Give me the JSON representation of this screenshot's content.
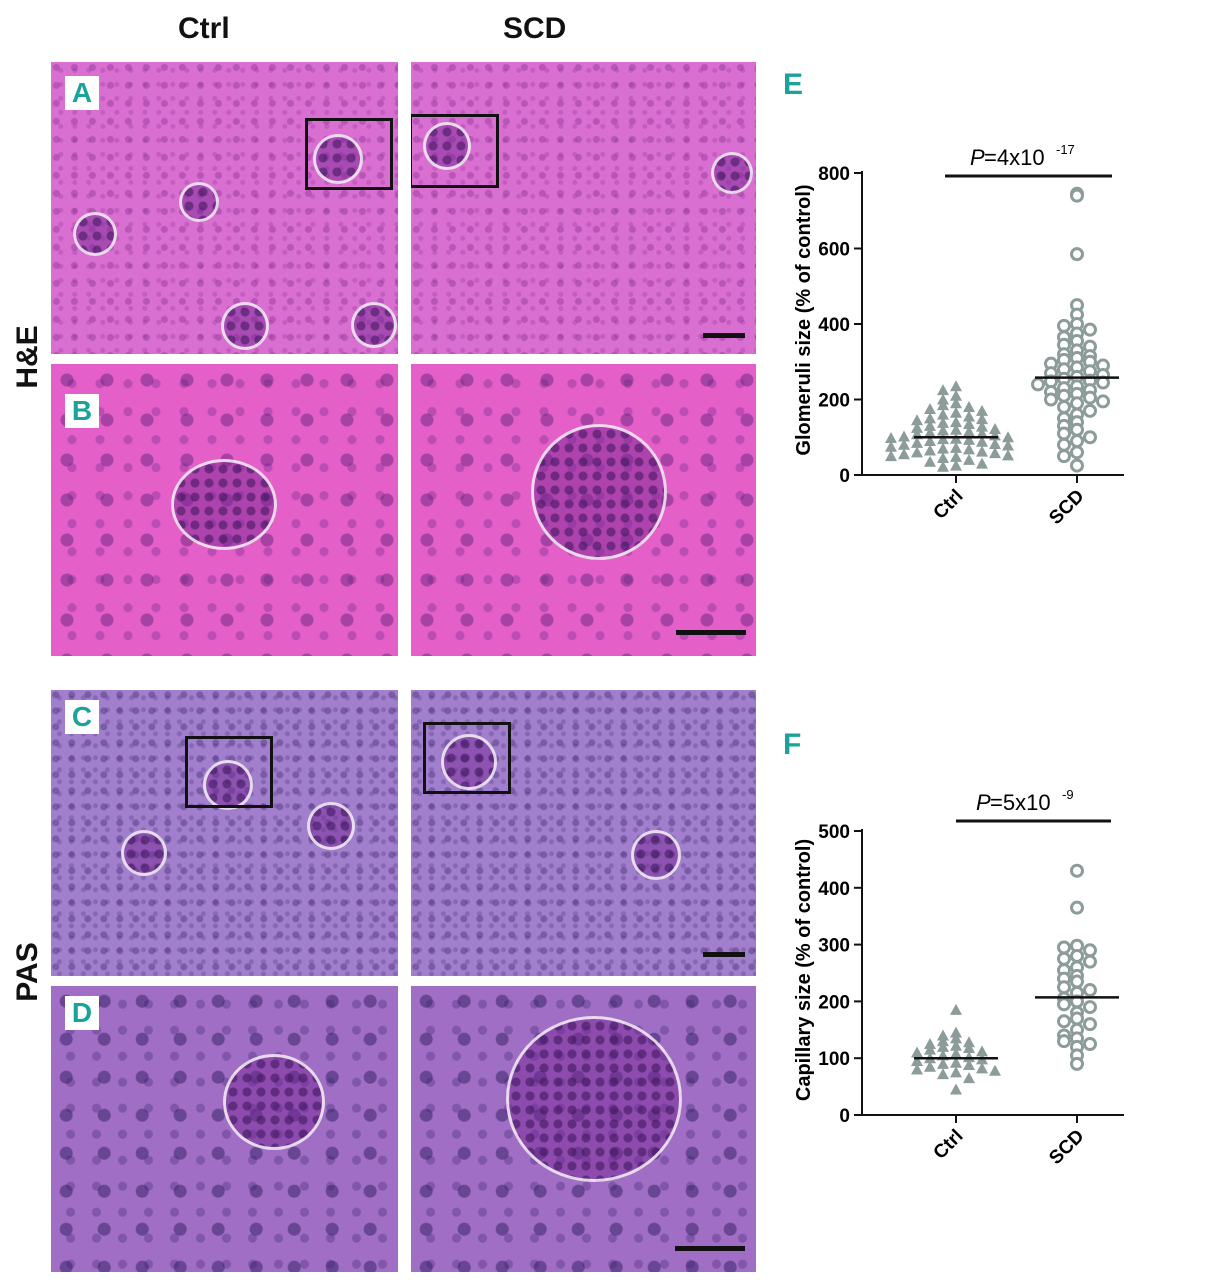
{
  "columns": {
    "ctrl": "Ctrl",
    "scd": "SCD"
  },
  "rows": {
    "he": "H&E",
    "pas": "PAS"
  },
  "panels": {
    "a": "A",
    "b": "B",
    "c": "C",
    "d": "D",
    "e": "E",
    "f": "F"
  },
  "colors": {
    "ctrl_marker": "#8c9c9a",
    "scd_marker": "#8c9c9a",
    "panel_letter": "#1aa39a"
  },
  "chart_data": [
    {
      "type": "scatter",
      "ylabel": "Glomeruli size (% of control)",
      "categories": [
        "Ctrl",
        "SCD"
      ],
      "ylim": [
        0,
        800
      ],
      "yticks": [
        0,
        200,
        400,
        600,
        800
      ],
      "pvalue": {
        "prefix": "P",
        "text": "=4x10",
        "exp": "-17"
      },
      "series": [
        {
          "marker": "triangle",
          "category": "Ctrl",
          "mean": 100,
          "values": [
            235,
            225,
            210,
            200,
            190,
            185,
            180,
            175,
            170,
            165,
            160,
            155,
            150,
            148,
            145,
            140,
            138,
            135,
            130,
            128,
            125,
            122,
            120,
            118,
            115,
            112,
            110,
            108,
            105,
            102,
            100,
            98,
            96,
            95,
            93,
            90,
            88,
            85,
            82,
            80,
            78,
            75,
            72,
            70,
            68,
            65,
            62,
            60,
            58,
            55,
            52,
            50,
            48,
            45,
            40,
            35,
            30,
            25,
            22
          ]
        },
        {
          "marker": "circle",
          "category": "SCD",
          "mean": 258,
          "values": [
            745,
            740,
            585,
            450,
            425,
            400,
            395,
            385,
            375,
            365,
            355,
            345,
            340,
            330,
            320,
            315,
            310,
            305,
            300,
            295,
            290,
            285,
            280,
            275,
            270,
            265,
            260,
            255,
            250,
            248,
            245,
            240,
            235,
            230,
            225,
            220,
            215,
            210,
            205,
            200,
            195,
            190,
            180,
            170,
            160,
            150,
            140,
            130,
            120,
            110,
            100,
            90,
            80,
            60,
            50,
            25
          ]
        }
      ]
    },
    {
      "type": "scatter",
      "ylabel": "Capillary size (% of control)",
      "categories": [
        "Ctrl",
        "SCD"
      ],
      "ylim": [
        0,
        500
      ],
      "yticks": [
        0,
        100,
        200,
        300,
        400,
        500
      ],
      "pvalue": {
        "prefix": "P",
        "text": "=5x10",
        "exp": "-9"
      },
      "series": [
        {
          "marker": "triangle",
          "category": "Ctrl",
          "mean": 100,
          "values": [
            185,
            145,
            140,
            135,
            130,
            128,
            125,
            122,
            120,
            118,
            115,
            112,
            110,
            108,
            105,
            102,
            100,
            98,
            95,
            92,
            90,
            88,
            85,
            82,
            80,
            78,
            75,
            72,
            65,
            45
          ]
        },
        {
          "marker": "circle",
          "category": "SCD",
          "mean": 207,
          "values": [
            430,
            365,
            298,
            295,
            290,
            280,
            275,
            270,
            260,
            255,
            245,
            240,
            235,
            225,
            220,
            215,
            205,
            200,
            195,
            190,
            180,
            170,
            165,
            160,
            150,
            140,
            135,
            130,
            125,
            120,
            105,
            90
          ]
        }
      ]
    }
  ]
}
